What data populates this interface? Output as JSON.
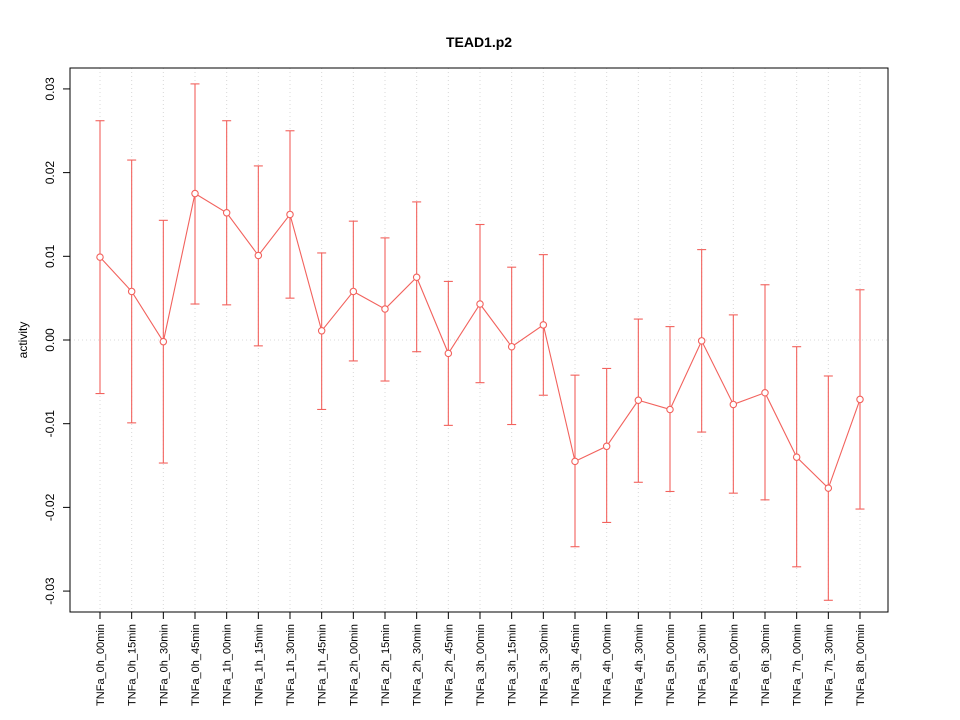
{
  "chart_data": {
    "type": "line",
    "title": "TEAD1.p2",
    "xlabel": "",
    "ylabel": "activity",
    "ylim": [
      -0.0325,
      0.0325
    ],
    "yticks": [
      -0.03,
      -0.02,
      -0.01,
      0,
      0.01,
      0.02,
      0.03
    ],
    "ytick_labels": [
      "-0.03",
      "-0.02",
      "-0.01",
      "0.00",
      "0.01",
      "0.02",
      "0.03"
    ],
    "grid": {
      "vertical": "dotted line at every category",
      "horizontal": "dotted line at y=0"
    },
    "legend": "none",
    "series_color": "#f2625d",
    "point_style": "open-circle",
    "error_bars": true,
    "categories": [
      "TNFa_0h_00min",
      "TNFa_0h_15min",
      "TNFa_0h_30min",
      "TNFa_0h_45min",
      "TNFa_1h_00min",
      "TNFa_1h_15min",
      "TNFa_1h_30min",
      "TNFa_1h_45min",
      "TNFa_2h_00min",
      "TNFa_2h_15min",
      "TNFa_2h_30min",
      "TNFa_2h_45min",
      "TNFa_3h_00min",
      "TNFa_3h_15min",
      "TNFa_3h_30min",
      "TNFa_3h_45min",
      "TNFa_4h_00min",
      "TNFa_4h_30min",
      "TNFa_5h_00min",
      "TNFa_5h_30min",
      "TNFa_6h_00min",
      "TNFa_6h_30min",
      "TNFa_7h_00min",
      "TNFa_7h_30min",
      "TNFa_8h_00min"
    ],
    "series": [
      {
        "name": "activity",
        "values": [
          0.0099,
          0.0058,
          -0.0002,
          0.0175,
          0.0152,
          0.0101,
          0.015,
          0.0011,
          0.0058,
          0.0037,
          0.0075,
          -0.0016,
          0.0043,
          -0.0008,
          0.0018,
          -0.0145,
          -0.0127,
          -0.0072,
          -0.0083,
          -0.0001,
          -0.0077,
          -0.0063,
          -0.014,
          -0.0177,
          -0.0071
        ],
        "upper": [
          0.0262,
          0.0215,
          0.0143,
          0.0306,
          0.0262,
          0.0208,
          0.025,
          0.0104,
          0.0142,
          0.0122,
          0.0165,
          0.007,
          0.0138,
          0.0087,
          0.0102,
          -0.0042,
          -0.0034,
          0.0025,
          0.0016,
          0.0108,
          0.003,
          0.0066,
          -0.0008,
          -0.0043,
          0.006
        ],
        "lower": [
          -0.0064,
          -0.0099,
          -0.0147,
          0.0043,
          0.0042,
          -0.0007,
          0.005,
          -0.0083,
          -0.0025,
          -0.0049,
          -0.0014,
          -0.0102,
          -0.0051,
          -0.0101,
          -0.0066,
          -0.0247,
          -0.0218,
          -0.017,
          -0.0181,
          -0.011,
          -0.0183,
          -0.0191,
          -0.0271,
          -0.0311,
          -0.0202
        ]
      }
    ]
  }
}
